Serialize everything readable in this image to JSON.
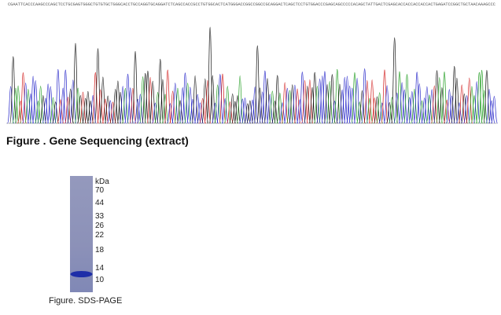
{
  "sequence": "CGAATTCACCCAAGCCCAGCTCCTGCGAGTGGGCTGTGTGCTGGGCACCTGCCAGGTGCAGGATCTCAGCCACCGCCTGTGGCACTCATGGGACCGGCCGGCCGCAGGACTCAGCTCCTGTGGACCCGAGCAGCCCCCACAGCTATTGACTCGAGCACCACCACCACCACTGAGATCCGGCTGCTAACAAAGCCC",
  "gene_caption": "Figure . Gene Sequencing (extract)",
  "gel": {
    "unit": "kDa",
    "markers": [
      70,
      44,
      33,
      26,
      22,
      18,
      14,
      10
    ],
    "caption": "Figure. SDS-PAGE"
  }
}
